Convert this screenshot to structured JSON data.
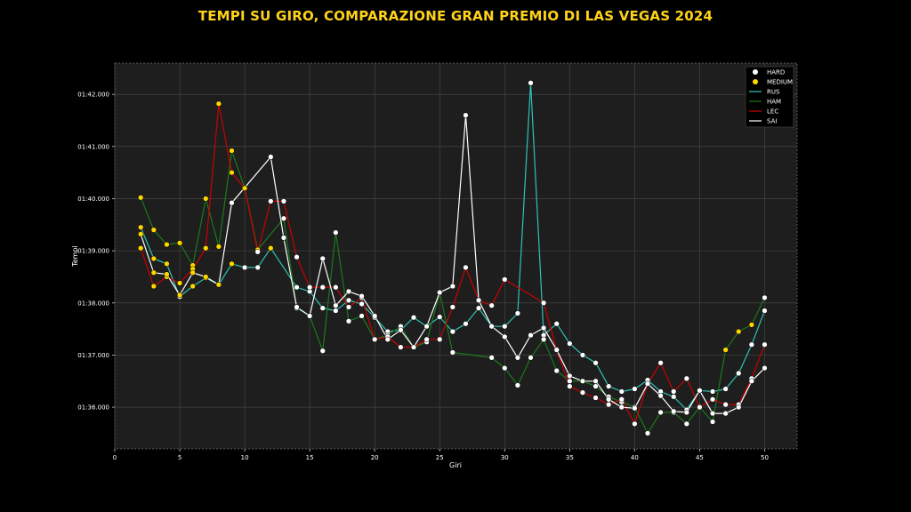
{
  "chart_data": {
    "type": "line",
    "title": "TEMPI SU GIRO, COMPARAZIONE GRAN PREMIO DI LAS VEGAS 2024",
    "xlabel": "Giri",
    "ylabel": "Tempi",
    "xlim": [
      0,
      52.5
    ],
    "ylim": [
      95.2,
      102.6
    ],
    "x_ticks": [
      0,
      5,
      10,
      15,
      20,
      25,
      30,
      35,
      40,
      45,
      50
    ],
    "y_ticks": [
      {
        "value": 96,
        "label": "01:36.000"
      },
      {
        "value": 97,
        "label": "01:37.000"
      },
      {
        "value": 98,
        "label": "01:38.000"
      },
      {
        "value": 99,
        "label": "01:39.000"
      },
      {
        "value": 100,
        "label": "01:40.000"
      },
      {
        "value": 101,
        "label": "01:41.000"
      },
      {
        "value": 102,
        "label": "01:42.000"
      }
    ],
    "grid": true,
    "legend_position": "top-right",
    "colors": {
      "background": "#000000",
      "plot_background": "#1e1e1e",
      "grid": "#4a4a4a",
      "title": "#ffd21a",
      "HARD": "#ffffff",
      "MEDIUM": "#ffd700",
      "RUS": "#2ec4b6",
      "HAM": "#1a7a1a",
      "LEC": "#cc0000",
      "SAI": "#ffffff"
    },
    "legend": [
      {
        "label": "HARD",
        "kind": "marker",
        "color": "#ffffff"
      },
      {
        "label": "MEDIUM",
        "kind": "marker",
        "color": "#ffd700"
      },
      {
        "label": "RUS",
        "kind": "line",
        "color": "#2ec4b6"
      },
      {
        "label": "HAM",
        "kind": "line",
        "color": "#1a7a1a"
      },
      {
        "label": "LEC",
        "kind": "line",
        "color": "#cc0000"
      },
      {
        "label": "SAI",
        "kind": "line",
        "color": "#ffffff"
      }
    ],
    "series": [
      {
        "name": "RUS",
        "color": "#2ec4b6",
        "x": [
          2,
          3,
          4,
          5,
          6,
          7,
          8,
          9,
          10,
          11,
          12,
          14,
          15,
          16,
          17,
          18,
          19,
          20,
          21,
          22,
          23,
          24,
          25,
          26,
          27,
          28,
          29,
          30,
          31,
          32,
          33,
          34,
          35,
          36,
          37,
          38,
          39,
          40,
          41,
          42,
          43,
          44,
          45,
          46,
          47,
          48,
          49,
          50
        ],
        "y": [
          99.45,
          98.85,
          98.75,
          98.12,
          98.32,
          98.48,
          98.35,
          98.75,
          98.68,
          98.68,
          99.05,
          98.3,
          98.22,
          97.9,
          97.85,
          98.05,
          97.98,
          97.72,
          97.45,
          97.48,
          97.72,
          97.55,
          97.73,
          97.45,
          97.6,
          97.9,
          97.55,
          97.55,
          97.8,
          102.22,
          97.38,
          97.6,
          97.22,
          97.0,
          96.85,
          96.4,
          96.3,
          96.35,
          96.52,
          96.3,
          96.2,
          95.95,
          96.32,
          96.3,
          96.35,
          96.65,
          97.2,
          97.85
        ],
        "marker": [
          "M",
          "M",
          "M",
          "H",
          "M",
          "M",
          "M",
          "M",
          "H",
          "H",
          "M",
          "H",
          "H",
          "H",
          "H",
          "H",
          "H",
          "H",
          "H",
          "H",
          "H",
          "H",
          "H",
          "H",
          "H",
          "H",
          "H",
          "H",
          "H",
          "H",
          "H",
          "H",
          "H",
          "H",
          "H",
          "H",
          "H",
          "H",
          "H",
          "H",
          "H",
          "H",
          "H",
          "H",
          "H",
          "H",
          "H",
          "H"
        ]
      },
      {
        "name": "HAM",
        "color": "#1a7a1a",
        "x": [
          2,
          3,
          4,
          5,
          6,
          7,
          8,
          9,
          10,
          11,
          13,
          14,
          15,
          16,
          17,
          18,
          19,
          20,
          21,
          22,
          23,
          24,
          25,
          26,
          29,
          30,
          31,
          32,
          33,
          34,
          35,
          36,
          37,
          38,
          39,
          40,
          41,
          42,
          43,
          44,
          45,
          46,
          47,
          48,
          49,
          50
        ],
        "y": [
          100.02,
          99.4,
          99.12,
          99.15,
          98.72,
          100.0,
          99.08,
          100.92,
          100.2,
          99.02,
          99.62,
          97.9,
          97.75,
          97.08,
          99.35,
          97.65,
          97.75,
          97.3,
          97.38,
          97.55,
          97.15,
          97.25,
          98.2,
          97.05,
          96.95,
          96.75,
          96.42,
          96.95,
          97.3,
          96.7,
          96.5,
          96.5,
          96.4,
          96.2,
          96.1,
          96.0,
          95.5,
          95.9,
          95.9,
          95.68,
          96.0,
          95.72,
          97.1,
          97.45,
          97.58,
          98.1
        ],
        "marker": [
          "M",
          "M",
          "M",
          "M",
          "M",
          "M",
          "M",
          "M",
          "M",
          "M",
          "H",
          "H",
          "H",
          "H",
          "H",
          "H",
          "H",
          "H",
          "H",
          "H",
          "H",
          "H",
          "H",
          "H",
          "H",
          "H",
          "H",
          "H",
          "H",
          "H",
          "H",
          "H",
          "H",
          "H",
          "H",
          "H",
          "H",
          "H",
          "H",
          "H",
          "H",
          "H",
          "M",
          "M",
          "M",
          "H"
        ]
      },
      {
        "name": "LEC",
        "color": "#cc0000",
        "x": [
          2,
          3,
          4,
          5,
          6,
          7,
          8,
          9,
          10,
          11,
          12,
          13,
          14,
          15,
          16,
          17,
          18,
          19,
          20,
          21,
          22,
          23,
          24,
          25,
          26,
          27,
          28,
          29,
          30,
          33,
          34,
          35,
          36,
          37,
          38,
          39,
          40,
          41,
          42,
          43,
          44,
          45,
          46,
          47,
          48,
          49,
          50
        ],
        "y": [
          99.05,
          98.32,
          98.5,
          98.38,
          98.65,
          99.05,
          101.82,
          100.5,
          100.2,
          98.98,
          99.95,
          99.95,
          98.88,
          98.3,
          98.3,
          98.3,
          97.92,
          98.1,
          97.3,
          97.35,
          97.15,
          97.15,
          97.3,
          97.3,
          97.92,
          98.68,
          98.05,
          97.95,
          98.45,
          98.0,
          97.1,
          96.4,
          96.28,
          96.18,
          96.05,
          96.15,
          95.68,
          96.45,
          96.85,
          96.3,
          96.55,
          96.0,
          96.15,
          96.05,
          96.05,
          96.55,
          97.2
        ],
        "marker": [
          "M",
          "M",
          "M",
          "M",
          "M",
          "M",
          "M",
          "M",
          "M",
          "H",
          "H",
          "H",
          "H",
          "H",
          "H",
          "H",
          "H",
          "H",
          "H",
          "H",
          "H",
          "H",
          "H",
          "H",
          "H",
          "H",
          "H",
          "H",
          "H",
          "H",
          "H",
          "H",
          "H",
          "H",
          "H",
          "H",
          "H",
          "H",
          "H",
          "H",
          "H",
          "H",
          "H",
          "H",
          "H",
          "H",
          "H"
        ]
      },
      {
        "name": "SAI",
        "color": "#ffffff",
        "x": [
          2,
          3,
          4,
          5,
          6,
          7,
          8,
          9,
          12,
          13,
          14,
          15,
          16,
          17,
          18,
          19,
          20,
          21,
          22,
          23,
          24,
          25,
          26,
          27,
          28,
          29,
          30,
          31,
          32,
          33,
          34,
          35,
          36,
          37,
          38,
          39,
          40,
          41,
          42,
          43,
          44,
          45,
          46,
          47,
          48,
          49,
          50
        ],
        "y": [
          99.32,
          98.58,
          98.55,
          98.15,
          98.58,
          98.5,
          98.35,
          99.92,
          100.8,
          99.25,
          97.92,
          97.75,
          98.85,
          97.95,
          98.22,
          98.13,
          97.75,
          97.3,
          97.48,
          97.15,
          97.55,
          98.2,
          98.32,
          101.6,
          98.05,
          97.55,
          97.35,
          96.95,
          97.38,
          97.52,
          97.1,
          96.6,
          96.5,
          96.5,
          96.15,
          96.0,
          95.98,
          96.45,
          96.22,
          95.92,
          95.9,
          96.32,
          95.88,
          95.88,
          96.0,
          96.5,
          96.75
        ],
        "marker": [
          "M",
          "M",
          "M",
          "M",
          "M",
          "M",
          "M",
          "H",
          "H",
          "H",
          "H",
          "H",
          "H",
          "H",
          "H",
          "H",
          "H",
          "H",
          "H",
          "H",
          "H",
          "H",
          "H",
          "H",
          "H",
          "H",
          "H",
          "H",
          "H",
          "H",
          "H",
          "H",
          "H",
          "H",
          "H",
          "H",
          "H",
          "H",
          "H",
          "H",
          "H",
          "H",
          "H",
          "H",
          "H",
          "H",
          "H"
        ]
      }
    ]
  }
}
